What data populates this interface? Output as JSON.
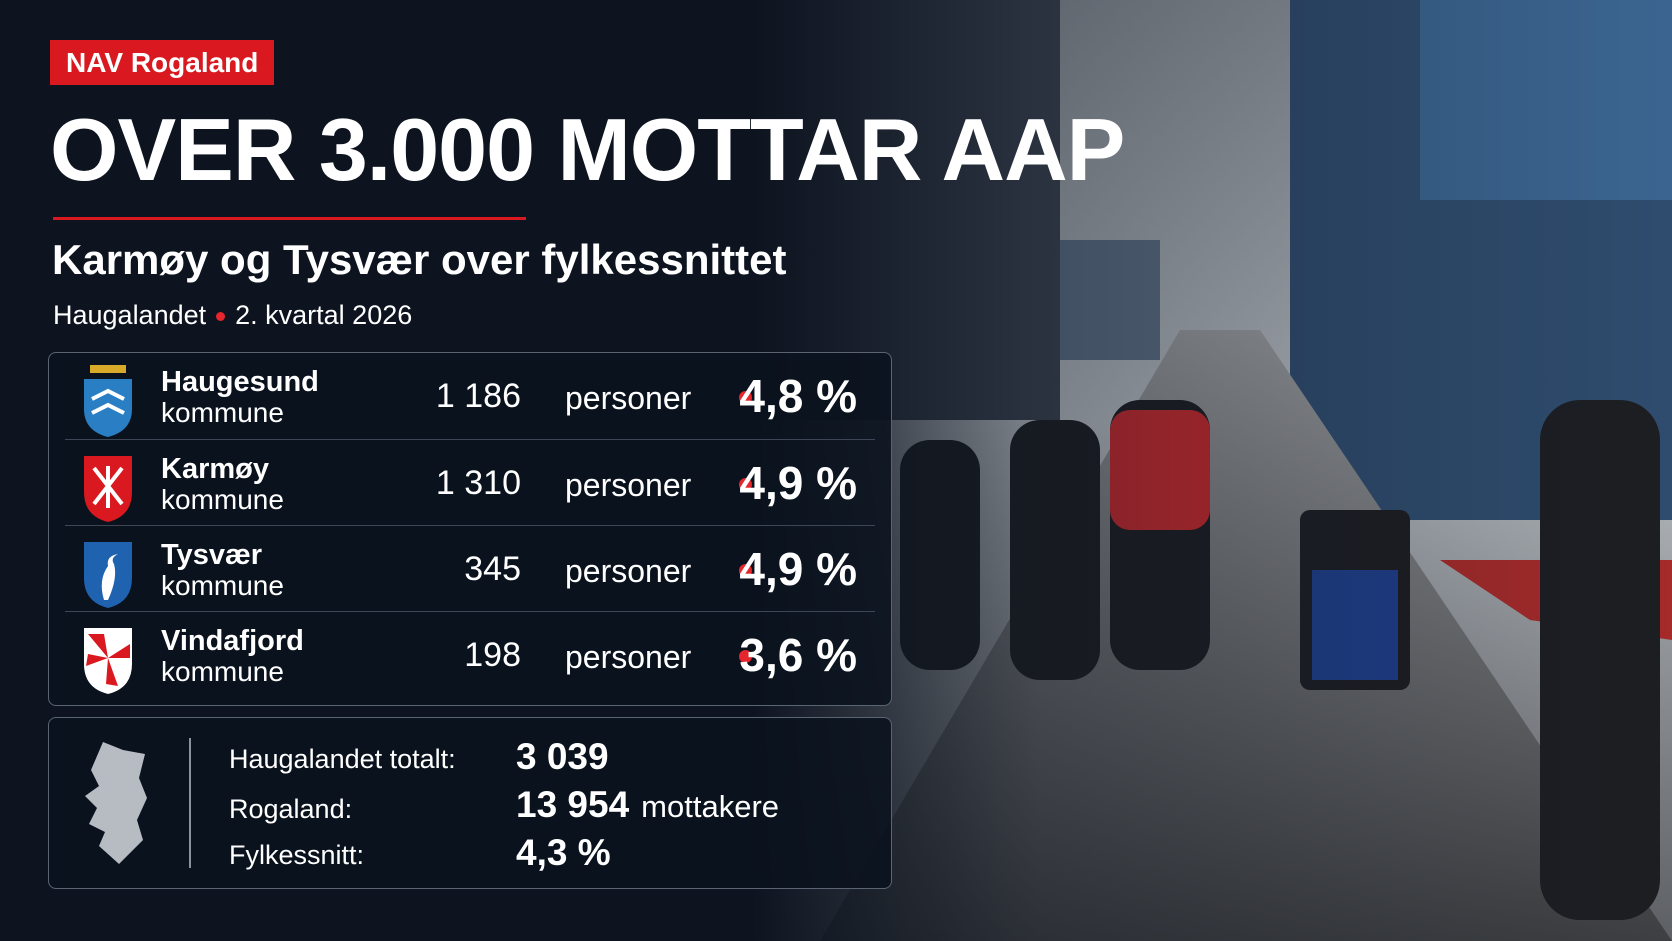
{
  "header": {
    "badge": "NAV Rogaland",
    "title": "OVER 3.000 MOTTAR AAP",
    "subtitle": "Karmøy og Tysvær over fylkessnittet",
    "region": "Haugalandet",
    "period": "2. kvartal 2026"
  },
  "municipalities": [
    {
      "name": "Haugesund",
      "kind": "kommune",
      "count": "1 186",
      "unit": "personer",
      "share": "4,8 %"
    },
    {
      "name": "Karmøy",
      "kind": "kommune",
      "count": "1 310",
      "unit": "personer",
      "share": "4,9 %"
    },
    {
      "name": "Tysvær",
      "kind": "kommune",
      "count": "345",
      "unit": "personer",
      "share": "4,9 %"
    },
    {
      "name": "Vindafjord",
      "kind": "kommune",
      "count": "198",
      "unit": "personer",
      "share": "3,6 %"
    }
  ],
  "summary": [
    {
      "label": "Haugalandet totalt:",
      "value": "3 039"
    },
    {
      "label": "Rogaland:",
      "value": "13 954",
      "unit": "mottakere"
    },
    {
      "label": "Fylkessnitt:",
      "value": "4,3 %"
    }
  ]
}
